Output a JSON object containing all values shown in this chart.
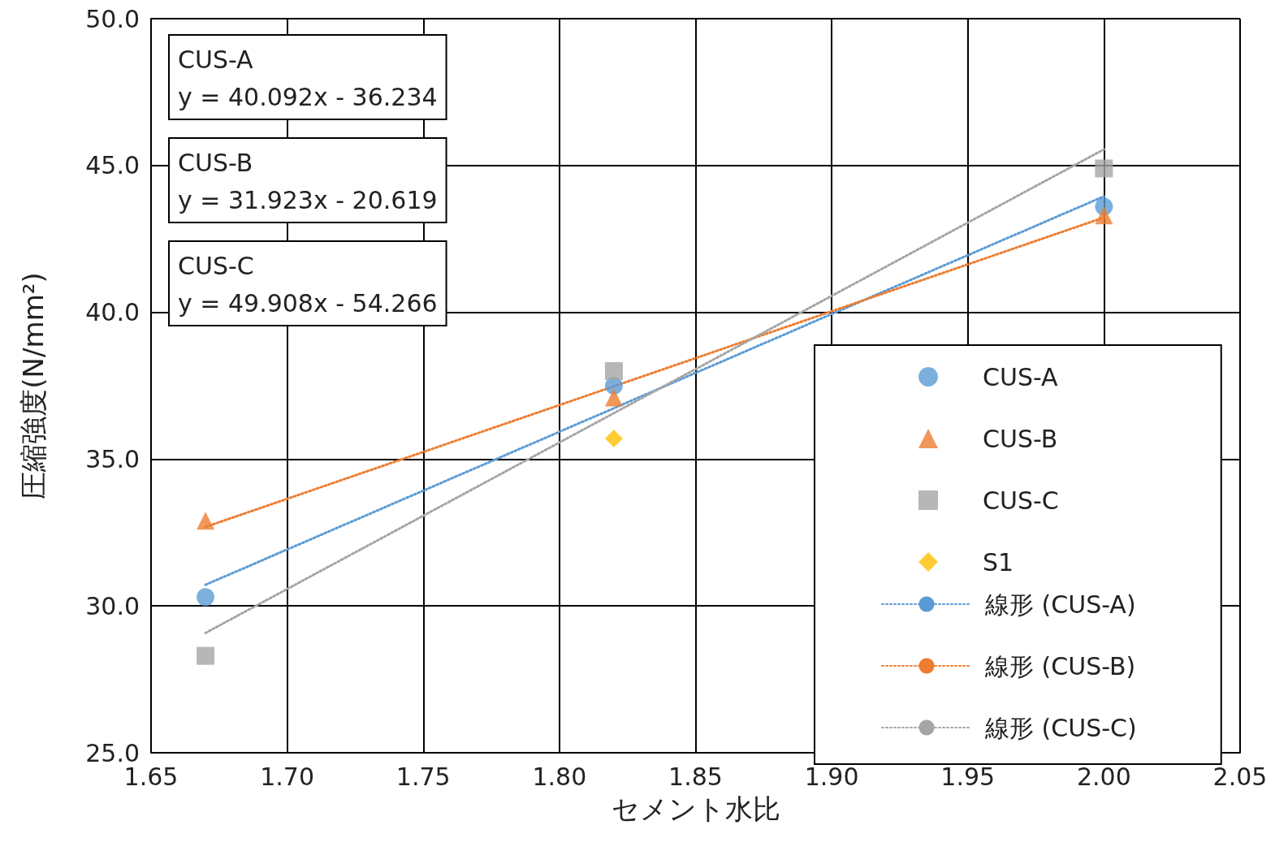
{
  "chart_data": {
    "type": "scatter",
    "xlabel": "セメント水比",
    "ylabel": "圧縮強度(N/mm²)",
    "xlim": [
      1.65,
      2.05
    ],
    "xticks": [
      {
        "value": 1.65,
        "label": "1.65"
      },
      {
        "value": 1.7,
        "label": "1.70"
      },
      {
        "value": 1.75,
        "label": "1.75"
      },
      {
        "value": 1.8,
        "label": "1.80"
      },
      {
        "value": 1.85,
        "label": "1.85"
      },
      {
        "value": 1.9,
        "label": "1.90"
      },
      {
        "value": 1.95,
        "label": "1.95"
      },
      {
        "value": 2.0,
        "label": "2.00"
      },
      {
        "value": 2.05,
        "label": "2.05"
      }
    ],
    "ylim": [
      25,
      50
    ],
    "yticks": [
      {
        "value": 25,
        "label": "25.0"
      },
      {
        "value": 30,
        "label": "30.0"
      },
      {
        "value": 35,
        "label": "35.0"
      },
      {
        "value": 40,
        "label": "40.0"
      },
      {
        "value": 45,
        "label": "45.0"
      },
      {
        "value": 50,
        "label": "50.0"
      }
    ],
    "grid": true,
    "legend": "right",
    "annotations": [
      "CUS-A\ny = 40.092x - 36.234",
      "CUS-B\ny = 31.923x - 20.619",
      "CUS-C\ny = 49.908x - 54.266"
    ],
    "series": [
      {
        "name": "CUS-A",
        "marker": "circle",
        "color": "#5b9bd5",
        "x": [
          1.67,
          1.82,
          2.0
        ],
        "values": [
          30.3,
          37.5,
          43.6
        ]
      },
      {
        "name": "CUS-B",
        "marker": "triangle",
        "color": "#ed7d31",
        "x": [
          1.67,
          1.82,
          2.0
        ],
        "values": [
          32.9,
          37.1,
          43.3
        ]
      },
      {
        "name": "CUS-C",
        "marker": "square",
        "color": "#a5a5a5",
        "x": [
          1.67,
          1.82,
          2.0
        ],
        "values": [
          28.3,
          38.0,
          44.9
        ]
      },
      {
        "name": "S1",
        "marker": "diamond",
        "color": "#ffc000",
        "x": [
          1.82
        ],
        "values": [
          35.7
        ]
      },
      {
        "name": "線形 (CUS-A)",
        "type": "line",
        "marker": "none",
        "line_style": "dotted",
        "color": "#5b9bd5",
        "x": [
          1.67,
          2.0
        ],
        "values": [
          30.72,
          43.95
        ]
      },
      {
        "name": "線形 (CUS-B)",
        "type": "line",
        "marker": "none",
        "line_style": "dotted",
        "color": "#ed7d31",
        "x": [
          1.67,
          2.0
        ],
        "values": [
          32.69,
          43.23
        ]
      },
      {
        "name": "線形 (CUS-C)",
        "type": "line",
        "marker": "none",
        "line_style": "dotted",
        "color": "#a5a5a5",
        "x": [
          1.67,
          2.0
        ],
        "values": [
          29.08,
          45.55
        ]
      }
    ]
  }
}
